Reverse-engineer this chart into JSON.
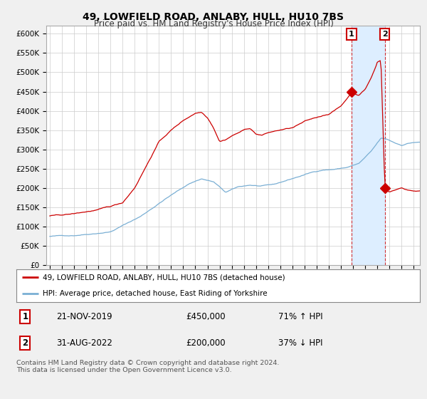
{
  "title": "49, LOWFIELD ROAD, ANLABY, HULL, HU10 7BS",
  "subtitle": "Price paid vs. HM Land Registry's House Price Index (HPI)",
  "yticks": [
    0,
    50000,
    100000,
    150000,
    200000,
    250000,
    300000,
    350000,
    400000,
    450000,
    500000,
    550000,
    600000
  ],
  "ylim": [
    0,
    620000
  ],
  "xlim_left": 1994.7,
  "xlim_right": 2025.5,
  "house_color": "#cc0000",
  "hpi_color": "#7aafd4",
  "shade_color": "#ddeeff",
  "legend_house": "49, LOWFIELD ROAD, ANLABY, HULL, HU10 7BS (detached house)",
  "legend_hpi": "HPI: Average price, detached house, East Riding of Yorkshire",
  "transaction1_date": "21-NOV-2019",
  "transaction1_price": "£450,000",
  "transaction1_pct": "71% ↑ HPI",
  "transaction1_year": 2019.875,
  "transaction1_value": 450000,
  "transaction2_date": "31-AUG-2022",
  "transaction2_price": "£200,000",
  "transaction2_pct": "37% ↓ HPI",
  "transaction2_year": 2022.625,
  "transaction2_value": 200000,
  "footer": "Contains HM Land Registry data © Crown copyright and database right 2024.\nThis data is licensed under the Open Government Licence v3.0.",
  "background_color": "#f0f0f0",
  "plot_background": "#ffffff",
  "grid_color": "#cccccc",
  "title_fontsize": 10,
  "subtitle_fontsize": 8.5
}
